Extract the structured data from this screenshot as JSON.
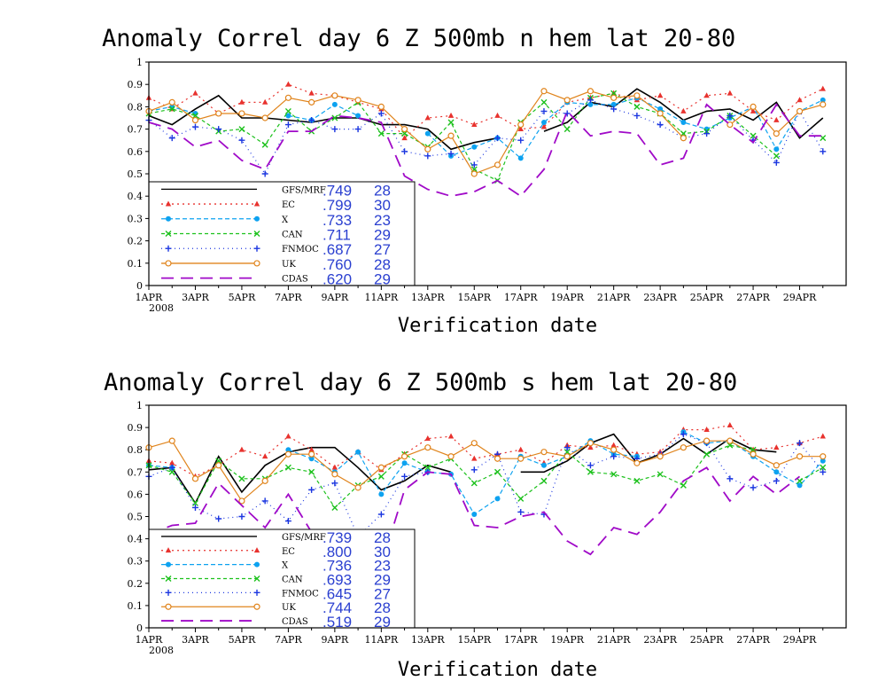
{
  "chart_data": [
    {
      "type": "line",
      "title": "Anomaly Correl  day 6  Z 500mb  n hem  lat 20-80",
      "xlabel": "Verification date",
      "ylabel": "",
      "ylim": [
        0,
        1
      ],
      "yticks": [
        "0",
        "0.1",
        "0.2",
        "0.3",
        "0.4",
        "0.5",
        "0.6",
        "0.7",
        "0.8",
        "0.9",
        "1"
      ],
      "xticks": [
        "1APR",
        "3APR",
        "5APR",
        "7APR",
        "9APR",
        "11APR",
        "13APR",
        "15APR",
        "17APR",
        "19APR",
        "21APR",
        "23APR",
        "25APR",
        "27APR",
        "29APR"
      ],
      "xyear": "2008",
      "days": [
        1,
        30
      ],
      "legend_position": "lower-left",
      "series": [
        {
          "name": "GFS/MRF",
          "stat": ".749",
          "count": "28",
          "color": "#000000",
          "dash": "",
          "marker": "none",
          "values": [
            0.76,
            0.72,
            0.79,
            0.85,
            0.75,
            0.75,
            0.74,
            0.73,
            0.75,
            0.75,
            0.72,
            0.72,
            0.7,
            0.61,
            0.64,
            0.66,
            null,
            0.69,
            0.73,
            0.82,
            0.8,
            0.88,
            0.82,
            0.74,
            0.78,
            0.79,
            0.74,
            0.82,
            0.66,
            0.75
          ]
        },
        {
          "name": "EC",
          "stat": ".799",
          "count": "30",
          "color": "#e8322e",
          "dash": "2,4",
          "marker": "triangle",
          "values": [
            0.84,
            0.79,
            0.86,
            0.77,
            0.82,
            0.82,
            0.9,
            0.86,
            0.85,
            0.82,
            0.79,
            0.66,
            0.75,
            0.76,
            0.72,
            0.76,
            0.7,
            0.71,
            0.82,
            0.84,
            0.86,
            0.83,
            0.85,
            0.78,
            0.85,
            0.86,
            0.78,
            0.74,
            0.83,
            0.88
          ]
        },
        {
          "name": "X",
          "stat": ".733",
          "count": "23",
          "color": "#0da2f0",
          "dash": "5,3",
          "marker": "circle",
          "values": [
            0.78,
            0.8,
            0.77,
            null,
            null,
            null,
            0.76,
            0.74,
            0.81,
            0.76,
            null,
            null,
            0.68,
            0.58,
            0.62,
            0.66,
            0.57,
            0.73,
            0.82,
            0.81,
            0.81,
            0.84,
            0.79,
            0.73,
            0.7,
            0.75,
            0.8,
            0.61,
            0.78,
            0.83
          ]
        },
        {
          "name": "CAN",
          "stat": ".711",
          "count": "29",
          "color": "#1cc11c",
          "dash": "4,3",
          "marker": "cross",
          "values": [
            0.77,
            0.79,
            0.76,
            0.69,
            0.7,
            0.63,
            0.78,
            0.69,
            0.75,
            0.82,
            0.68,
            0.68,
            0.62,
            0.73,
            0.52,
            0.47,
            0.73,
            0.82,
            0.7,
            0.84,
            0.86,
            0.8,
            0.77,
            0.68,
            0.69,
            0.76,
            0.67,
            0.58,
            null,
            0.66
          ]
        },
        {
          "name": "FNMOC",
          "stat": ".687",
          "count": "27",
          "color": "#1b36e0",
          "dash": "1,4",
          "marker": "plus",
          "values": [
            0.74,
            0.66,
            0.71,
            0.7,
            0.65,
            0.5,
            0.72,
            0.74,
            0.7,
            0.7,
            0.77,
            0.6,
            0.58,
            0.59,
            0.54,
            0.66,
            0.65,
            0.78,
            0.77,
            0.83,
            0.79,
            0.76,
            0.72,
            0.66,
            0.68,
            0.76,
            0.65,
            0.55,
            0.78,
            0.6
          ]
        },
        {
          "name": "UK",
          "stat": ".760",
          "count": "28",
          "color": "#e0841c",
          "dash": "",
          "marker": "circle-open",
          "values": [
            0.78,
            0.82,
            0.74,
            0.77,
            0.77,
            0.75,
            0.84,
            0.82,
            0.85,
            0.83,
            0.8,
            0.7,
            0.61,
            0.67,
            0.5,
            0.54,
            0.72,
            0.87,
            0.83,
            0.87,
            0.84,
            0.85,
            0.77,
            0.66,
            null,
            0.72,
            0.8,
            0.68,
            0.78,
            0.81
          ]
        },
        {
          "name": "CDAS",
          "stat": ".620",
          "count": "29",
          "color": "#a00ac8",
          "dash": "14,8",
          "marker": "none",
          "values": [
            0.73,
            0.7,
            0.62,
            0.65,
            0.56,
            0.52,
            0.69,
            0.69,
            0.76,
            0.75,
            0.73,
            0.49,
            0.43,
            0.4,
            0.42,
            0.47,
            0.4,
            0.52,
            0.78,
            0.67,
            0.69,
            0.68,
            0.54,
            0.57,
            0.81,
            0.72,
            0.64,
            0.81,
            0.67,
            0.67
          ]
        }
      ]
    },
    {
      "type": "line",
      "title": "Anomaly Correl  day 6  Z 500mb  s hem  lat 20-80",
      "xlabel": "Verification date",
      "ylabel": "",
      "ylim": [
        0,
        1
      ],
      "yticks": [
        "0",
        "0.1",
        "0.2",
        "0.3",
        "0.4",
        "0.5",
        "0.6",
        "0.7",
        "0.8",
        "0.9",
        "1"
      ],
      "xticks": [
        "1APR",
        "3APR",
        "5APR",
        "7APR",
        "9APR",
        "11APR",
        "13APR",
        "15APR",
        "17APR",
        "19APR",
        "21APR",
        "23APR",
        "25APR",
        "27APR",
        "29APR"
      ],
      "xyear": "2008",
      "days": [
        1,
        30
      ],
      "legend_position": "lower-left",
      "series": [
        {
          "name": "GFS/MRF",
          "stat": ".739",
          "count": "28",
          "color": "#000000",
          "dash": "",
          "marker": "none",
          "values": [
            0.71,
            0.72,
            0.56,
            0.77,
            0.61,
            0.73,
            0.79,
            0.81,
            0.81,
            0.72,
            0.62,
            0.66,
            0.73,
            0.7,
            null,
            null,
            0.7,
            0.7,
            0.75,
            0.83,
            0.87,
            0.74,
            0.78,
            0.85,
            0.78,
            0.85,
            0.8,
            0.79,
            null,
            null
          ]
        },
        {
          "name": "EC",
          "stat": ".800",
          "count": "30",
          "color": "#e8322e",
          "dash": "2,4",
          "marker": "triangle",
          "values": [
            0.75,
            0.74,
            0.68,
            0.73,
            0.8,
            0.77,
            0.86,
            0.8,
            0.72,
            0.79,
            0.71,
            0.78,
            0.85,
            0.86,
            0.76,
            0.78,
            0.8,
            0.74,
            0.82,
            0.81,
            0.82,
            0.78,
            0.79,
            0.89,
            0.89,
            0.91,
            0.8,
            0.81,
            0.83,
            0.86
          ]
        },
        {
          "name": "X",
          "stat": ".736",
          "count": "23",
          "color": "#0da2f0",
          "dash": "5,3",
          "marker": "circle",
          "values": [
            0.73,
            0.72,
            null,
            null,
            null,
            null,
            0.8,
            0.76,
            0.7,
            0.79,
            0.6,
            0.74,
            0.7,
            0.69,
            0.51,
            0.58,
            0.77,
            0.73,
            0.77,
            0.84,
            0.78,
            0.77,
            null,
            0.88,
            0.83,
            0.84,
            0.77,
            0.7,
            0.64,
            0.75
          ]
        },
        {
          "name": "CAN",
          "stat": ".693",
          "count": "29",
          "color": "#1cc11c",
          "dash": "4,3",
          "marker": "cross",
          "values": [
            0.73,
            0.7,
            0.56,
            0.75,
            0.67,
            0.67,
            0.72,
            0.7,
            0.54,
            0.64,
            0.68,
            0.78,
            0.72,
            0.76,
            0.65,
            0.7,
            0.58,
            0.66,
            0.79,
            0.7,
            0.69,
            0.66,
            0.69,
            0.64,
            0.78,
            0.82,
            0.8,
            null,
            0.66,
            0.72
          ]
        },
        {
          "name": "FNMOC",
          "stat": ".645",
          "count": "27",
          "color": "#1b36e0",
          "dash": "1,4",
          "marker": "plus",
          "values": [
            0.68,
            0.72,
            0.54,
            0.49,
            0.5,
            0.57,
            0.48,
            0.62,
            0.65,
            0.41,
            0.51,
            0.68,
            0.7,
            null,
            0.71,
            0.78,
            0.52,
            0.51,
            0.81,
            0.73,
            0.77,
            0.76,
            0.78,
            0.87,
            0.83,
            0.67,
            0.63,
            0.66,
            0.83,
            0.7
          ]
        },
        {
          "name": "UK",
          "stat": ".744",
          "count": "28",
          "color": "#e0841c",
          "dash": "",
          "marker": "circle-open",
          "values": [
            0.81,
            0.84,
            0.67,
            0.73,
            0.57,
            0.66,
            0.78,
            0.78,
            0.69,
            0.63,
            0.72,
            0.77,
            0.81,
            0.77,
            0.83,
            0.76,
            0.76,
            0.79,
            0.77,
            0.83,
            0.8,
            0.74,
            0.77,
            0.81,
            0.84,
            0.84,
            0.78,
            0.73,
            0.77,
            0.77
          ]
        },
        {
          "name": "CDAS",
          "stat": ".519",
          "count": "29",
          "color": "#a00ac8",
          "dash": "14,8",
          "marker": "none",
          "values": [
            0.42,
            0.46,
            0.47,
            0.65,
            0.55,
            0.45,
            0.6,
            0.43,
            0.4,
            0.28,
            0.28,
            0.62,
            0.7,
            0.69,
            0.46,
            0.45,
            0.5,
            0.52,
            0.39,
            0.33,
            0.45,
            0.42,
            0.52,
            0.66,
            0.72,
            0.57,
            0.68,
            0.6,
            0.68,
            null
          ]
        }
      ]
    }
  ]
}
